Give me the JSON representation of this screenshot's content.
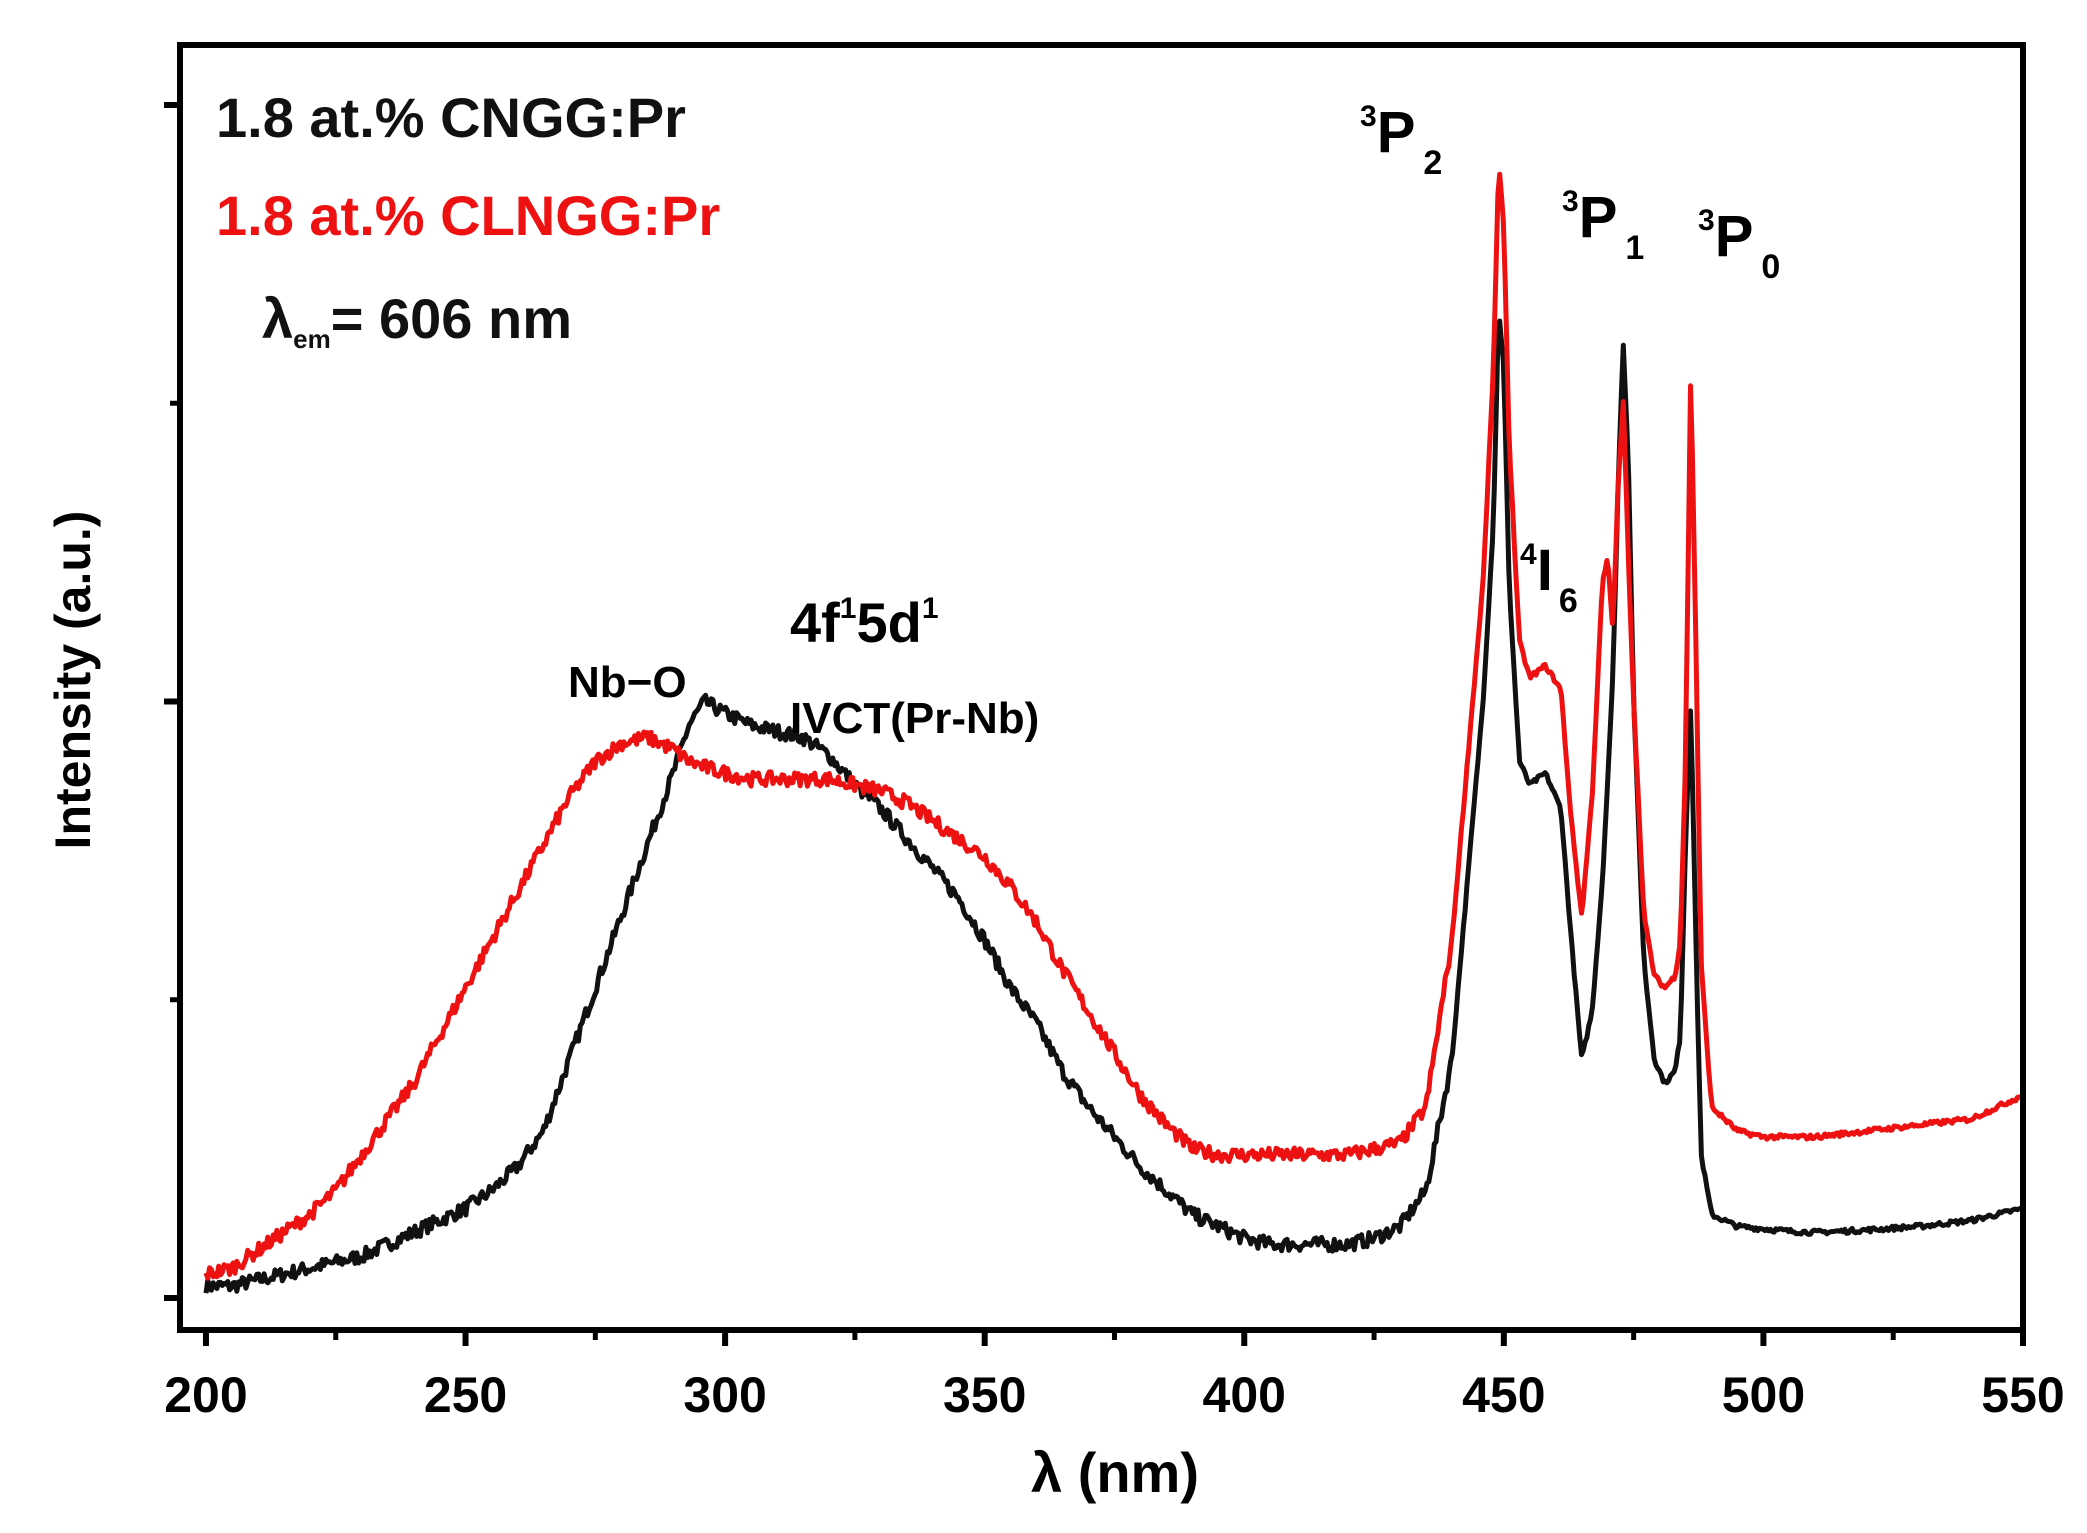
{
  "colors": {
    "series_black": "#111111",
    "series_red": "#ee1111",
    "axis": "#000000",
    "background": "#ffffff"
  },
  "chart_data": {
    "type": "line",
    "title": "",
    "xlabel_symbol": "λ",
    "xlabel_unit": "(nm)",
    "ylabel": "Intensity (a.u.)",
    "xlim": [
      195,
      550
    ],
    "ylim": [
      0,
      1.0
    ],
    "x_ticks": [
      200,
      250,
      300,
      350,
      400,
      450,
      500,
      550
    ],
    "x_tick_labels": [
      "200",
      "250",
      "300",
      "350",
      "400",
      "450",
      "500",
      "550"
    ],
    "y_tick_labels": [],
    "grid": false,
    "legend": {
      "placement": "top-left",
      "entries": [
        {
          "text": "1.8 at.% CNGG:Pr",
          "series": 0
        },
        {
          "text": "1.8 at.% CLNGG:Pr",
          "series": 1
        }
      ],
      "excitation_symbol": "λ",
      "excitation_subscript": "em",
      "excitation_value": "= 606 nm"
    },
    "annotations": [
      {
        "id": "nbo",
        "text": "Nb−O"
      },
      {
        "id": "f5d_main",
        "text": "4f",
        "sup1": "1",
        "mid": "5d",
        "sup2": "1"
      },
      {
        "id": "ivct",
        "text": "IVCT(Pr-Nb)"
      },
      {
        "id": "p2",
        "sup": "3",
        "base": "P",
        "sub": "2"
      },
      {
        "id": "i6",
        "sup": "4",
        "base": "I",
        "sub": "6"
      },
      {
        "id": "p1",
        "sup": "3",
        "base": "P",
        "sub": "1"
      },
      {
        "id": "p0",
        "sup": "3",
        "base": "P",
        "sub": "0"
      }
    ],
    "series": [
      {
        "name": "1.8 at.% CNGG:Pr",
        "color": "#111111",
        "x": [
          200,
          205,
          210,
          215,
          220,
          225,
          230,
          235,
          240,
          245,
          250,
          255,
          260,
          265,
          270,
          275,
          280,
          285,
          290,
          293,
          296,
          300,
          305,
          310,
          315,
          320,
          325,
          330,
          335,
          340,
          345,
          350,
          355,
          360,
          365,
          370,
          375,
          380,
          385,
          390,
          395,
          400,
          405,
          410,
          415,
          420,
          425,
          430,
          435,
          440,
          443,
          446,
          448,
          449,
          450,
          451,
          453,
          455,
          458,
          461,
          463,
          465,
          467,
          469,
          471,
          472,
          473,
          474,
          475,
          477,
          479,
          481,
          483,
          484,
          485,
          486,
          487,
          488,
          490,
          495,
          500,
          505,
          510,
          520,
          530,
          540,
          550
        ],
        "y": [
          0.01,
          0.01,
          0.015,
          0.02,
          0.025,
          0.03,
          0.035,
          0.045,
          0.055,
          0.065,
          0.075,
          0.09,
          0.11,
          0.14,
          0.2,
          0.26,
          0.32,
          0.38,
          0.44,
          0.48,
          0.5,
          0.49,
          0.48,
          0.475,
          0.47,
          0.455,
          0.43,
          0.41,
          0.385,
          0.36,
          0.335,
          0.3,
          0.26,
          0.23,
          0.19,
          0.16,
          0.135,
          0.11,
          0.09,
          0.07,
          0.06,
          0.05,
          0.045,
          0.045,
          0.045,
          0.045,
          0.05,
          0.06,
          0.09,
          0.2,
          0.35,
          0.5,
          0.65,
          0.83,
          0.78,
          0.6,
          0.45,
          0.43,
          0.44,
          0.41,
          0.3,
          0.2,
          0.24,
          0.35,
          0.52,
          0.68,
          0.8,
          0.7,
          0.5,
          0.28,
          0.2,
          0.18,
          0.19,
          0.22,
          0.38,
          0.5,
          0.3,
          0.12,
          0.07,
          0.06,
          0.058,
          0.056,
          0.055,
          0.057,
          0.06,
          0.065,
          0.075
        ]
      },
      {
        "name": "1.8 at.% CLNGG:Pr",
        "color": "#ee1111",
        "x": [
          200,
          205,
          210,
          215,
          220,
          225,
          230,
          235,
          240,
          245,
          250,
          255,
          260,
          265,
          270,
          275,
          280,
          285,
          290,
          293,
          296,
          300,
          305,
          310,
          315,
          320,
          325,
          330,
          335,
          340,
          345,
          350,
          355,
          360,
          365,
          370,
          375,
          380,
          385,
          390,
          395,
          400,
          405,
          410,
          415,
          420,
          425,
          430,
          435,
          440,
          443,
          446,
          448,
          449,
          450,
          451,
          453,
          455,
          458,
          461,
          463,
          465,
          467,
          469,
          470,
          471,
          472,
          473,
          474,
          475,
          477,
          479,
          481,
          483,
          484,
          485,
          486,
          487,
          488,
          490,
          495,
          500,
          505,
          510,
          520,
          530,
          540,
          550
        ],
        "y": [
          0.02,
          0.025,
          0.04,
          0.055,
          0.07,
          0.09,
          0.12,
          0.15,
          0.18,
          0.22,
          0.26,
          0.3,
          0.34,
          0.38,
          0.42,
          0.45,
          0.465,
          0.47,
          0.46,
          0.45,
          0.445,
          0.44,
          0.435,
          0.435,
          0.435,
          0.435,
          0.43,
          0.425,
          0.415,
          0.4,
          0.385,
          0.37,
          0.345,
          0.315,
          0.275,
          0.24,
          0.205,
          0.17,
          0.145,
          0.125,
          0.12,
          0.12,
          0.12,
          0.12,
          0.12,
          0.12,
          0.125,
          0.13,
          0.16,
          0.3,
          0.45,
          0.6,
          0.78,
          0.95,
          0.9,
          0.72,
          0.55,
          0.52,
          0.53,
          0.51,
          0.4,
          0.32,
          0.42,
          0.6,
          0.62,
          0.56,
          0.68,
          0.75,
          0.62,
          0.5,
          0.32,
          0.27,
          0.26,
          0.27,
          0.3,
          0.45,
          0.78,
          0.55,
          0.28,
          0.16,
          0.14,
          0.135,
          0.135,
          0.135,
          0.14,
          0.145,
          0.15,
          0.17
        ]
      }
    ]
  }
}
